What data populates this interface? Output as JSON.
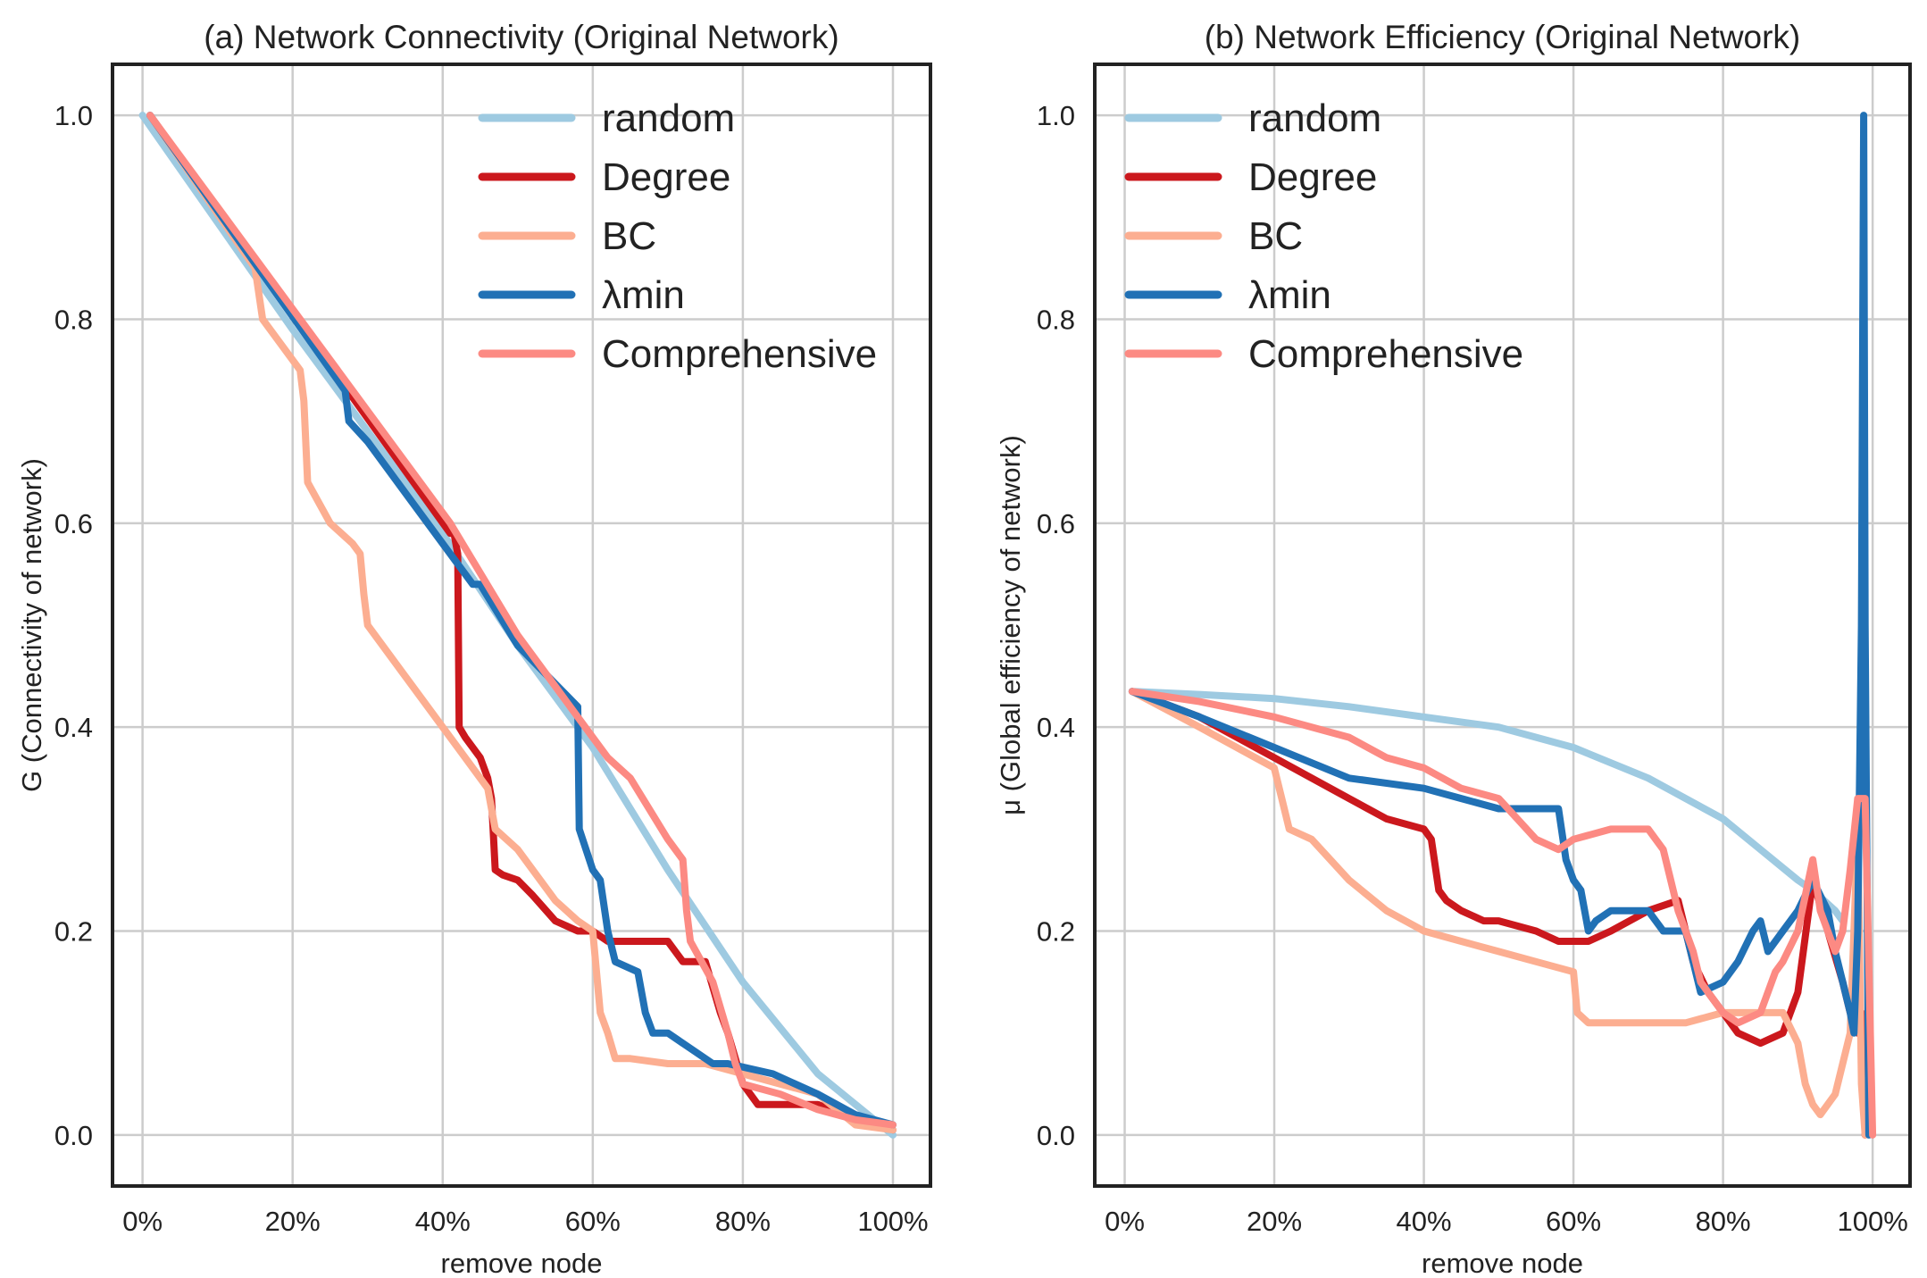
{
  "chart_data": [
    {
      "type": "line",
      "title": "(a) Network Connectivity (Original Network)",
      "xlabel": "remove node",
      "ylabel": "G (Connectivity of network)",
      "xlim": [
        -0.04,
        1.05
      ],
      "ylim": [
        -0.05,
        1.05
      ],
      "xticks": [
        0,
        0.2,
        0.4,
        0.6,
        0.8,
        1.0
      ],
      "xtick_labels": [
        "0%",
        "20%",
        "40%",
        "60%",
        "80%",
        "100%"
      ],
      "yticks": [
        0,
        0.2,
        0.4,
        0.6,
        0.8,
        1.0
      ],
      "ytick_labels": [
        "0.0",
        "0.2",
        "0.4",
        "0.6",
        "0.8",
        "1.0"
      ],
      "grid": true,
      "legend": "top-right",
      "series": [
        {
          "name": "random",
          "color": "#9ecae1",
          "x": [
            0,
            0.2,
            0.4,
            0.5,
            0.6,
            0.7,
            0.8,
            0.9,
            1.0
          ],
          "y": [
            1.0,
            0.79,
            0.59,
            0.48,
            0.38,
            0.26,
            0.15,
            0.06,
            0.0
          ]
        },
        {
          "name": "Degree",
          "color": "#cb181d",
          "x": [
            0.01,
            0.41,
            0.415,
            0.42,
            0.422,
            0.43,
            0.45,
            0.46,
            0.465,
            0.47,
            0.48,
            0.5,
            0.52,
            0.55,
            0.58,
            0.6,
            0.62,
            0.7,
            0.72,
            0.75,
            0.77,
            0.78,
            0.8,
            0.82,
            0.9,
            0.95,
            1.0
          ],
          "y": [
            1.0,
            0.59,
            0.59,
            0.57,
            0.4,
            0.39,
            0.37,
            0.35,
            0.33,
            0.26,
            0.255,
            0.25,
            0.235,
            0.21,
            0.2,
            0.2,
            0.19,
            0.19,
            0.17,
            0.17,
            0.12,
            0.1,
            0.05,
            0.03,
            0.03,
            0.015,
            0.005
          ]
        },
        {
          "name": "BC",
          "color": "#fcae91",
          "x": [
            0.01,
            0.15,
            0.16,
            0.2,
            0.21,
            0.215,
            0.22,
            0.25,
            0.28,
            0.29,
            0.295,
            0.3,
            0.35,
            0.4,
            0.46,
            0.47,
            0.5,
            0.55,
            0.58,
            0.6,
            0.61,
            0.62,
            0.63,
            0.65,
            0.7,
            0.75,
            0.8,
            0.9,
            0.95,
            1.0
          ],
          "y": [
            1.0,
            0.85,
            0.8,
            0.76,
            0.75,
            0.72,
            0.64,
            0.6,
            0.58,
            0.57,
            0.53,
            0.5,
            0.45,
            0.4,
            0.34,
            0.3,
            0.28,
            0.23,
            0.21,
            0.2,
            0.12,
            0.1,
            0.075,
            0.075,
            0.07,
            0.07,
            0.06,
            0.04,
            0.01,
            0.005
          ]
        },
        {
          "name": "λmin",
          "color": "#2171b5",
          "x": [
            0.01,
            0.27,
            0.275,
            0.3,
            0.35,
            0.4,
            0.44,
            0.45,
            0.5,
            0.58,
            0.582,
            0.6,
            0.61,
            0.62,
            0.63,
            0.66,
            0.67,
            0.68,
            0.7,
            0.76,
            0.78,
            0.84,
            0.87,
            0.9,
            0.95,
            1.0
          ],
          "y": [
            1.0,
            0.73,
            0.7,
            0.68,
            0.63,
            0.58,
            0.54,
            0.54,
            0.48,
            0.42,
            0.3,
            0.26,
            0.25,
            0.2,
            0.17,
            0.16,
            0.12,
            0.1,
            0.1,
            0.07,
            0.07,
            0.06,
            0.05,
            0.04,
            0.02,
            0.01
          ]
        },
        {
          "name": "Comprehensive",
          "color": "#fc8a83",
          "x": [
            0.01,
            0.41,
            0.5,
            0.6,
            0.62,
            0.65,
            0.7,
            0.72,
            0.725,
            0.73,
            0.76,
            0.78,
            0.79,
            0.8,
            0.85,
            0.9,
            0.95,
            1.0
          ],
          "y": [
            1.0,
            0.6,
            0.49,
            0.39,
            0.37,
            0.35,
            0.29,
            0.27,
            0.22,
            0.19,
            0.15,
            0.1,
            0.07,
            0.05,
            0.04,
            0.025,
            0.015,
            0.01
          ]
        }
      ]
    },
    {
      "type": "line",
      "title": "(b) Network Efficiency (Original Network)",
      "xlabel": "remove node",
      "ylabel": "μ (Global efficiency of network)",
      "xlim": [
        -0.04,
        1.05
      ],
      "ylim": [
        -0.05,
        1.05
      ],
      "xticks": [
        0,
        0.2,
        0.4,
        0.6,
        0.8,
        1.0
      ],
      "xtick_labels": [
        "0%",
        "20%",
        "40%",
        "60%",
        "80%",
        "100%"
      ],
      "yticks": [
        0,
        0.2,
        0.4,
        0.6,
        0.8,
        1.0
      ],
      "ytick_labels": [
        "0.0",
        "0.2",
        "0.4",
        "0.6",
        "0.8",
        "1.0"
      ],
      "grid": true,
      "legend": "top-left",
      "series": [
        {
          "name": "random",
          "color": "#9ecae1",
          "x": [
            0.01,
            0.1,
            0.2,
            0.3,
            0.4,
            0.5,
            0.55,
            0.6,
            0.7,
            0.8,
            0.85,
            0.9,
            0.92,
            0.95,
            0.96
          ],
          "y": [
            0.435,
            0.432,
            0.428,
            0.42,
            0.41,
            0.4,
            0.39,
            0.38,
            0.35,
            0.31,
            0.28,
            0.25,
            0.24,
            0.22,
            0.21
          ]
        },
        {
          "name": "Degree",
          "color": "#cb181d",
          "x": [
            0.01,
            0.1,
            0.2,
            0.25,
            0.3,
            0.35,
            0.4,
            0.41,
            0.42,
            0.43,
            0.45,
            0.48,
            0.5,
            0.55,
            0.58,
            0.6,
            0.62,
            0.65,
            0.7,
            0.74,
            0.75,
            0.76,
            0.78,
            0.8,
            0.82,
            0.85,
            0.88,
            0.9,
            0.92,
            0.94,
            0.96,
            0.97,
            0.98,
            0.985,
            0.99
          ],
          "y": [
            0.435,
            0.41,
            0.37,
            0.35,
            0.33,
            0.31,
            0.3,
            0.29,
            0.24,
            0.23,
            0.22,
            0.21,
            0.21,
            0.2,
            0.19,
            0.19,
            0.19,
            0.2,
            0.22,
            0.23,
            0.2,
            0.17,
            0.14,
            0.12,
            0.1,
            0.09,
            0.1,
            0.14,
            0.25,
            0.2,
            0.15,
            0.12,
            0.1,
            0.12,
            0.0
          ]
        },
        {
          "name": "BC",
          "color": "#fcae91",
          "x": [
            0.01,
            0.1,
            0.2,
            0.21,
            0.22,
            0.25,
            0.3,
            0.35,
            0.4,
            0.45,
            0.5,
            0.55,
            0.6,
            0.605,
            0.62,
            0.65,
            0.7,
            0.75,
            0.8,
            0.82,
            0.85,
            0.88,
            0.9,
            0.91,
            0.92,
            0.93,
            0.95,
            0.97,
            0.98,
            0.985,
            0.99
          ],
          "y": [
            0.435,
            0.4,
            0.36,
            0.33,
            0.3,
            0.29,
            0.25,
            0.22,
            0.2,
            0.19,
            0.18,
            0.17,
            0.16,
            0.12,
            0.11,
            0.11,
            0.11,
            0.11,
            0.12,
            0.12,
            0.12,
            0.12,
            0.09,
            0.05,
            0.03,
            0.02,
            0.04,
            0.1,
            0.3,
            0.05,
            0.0
          ]
        },
        {
          "name": "λmin",
          "color": "#2171b5",
          "x": [
            0.01,
            0.1,
            0.2,
            0.3,
            0.4,
            0.45,
            0.5,
            0.55,
            0.58,
            0.59,
            0.6,
            0.61,
            0.62,
            0.63,
            0.65,
            0.7,
            0.72,
            0.75,
            0.77,
            0.8,
            0.82,
            0.84,
            0.85,
            0.86,
            0.88,
            0.9,
            0.92,
            0.94,
            0.95,
            0.96,
            0.97,
            0.975,
            0.98,
            0.985,
            0.988,
            0.99,
            0.995
          ],
          "y": [
            0.435,
            0.41,
            0.38,
            0.35,
            0.34,
            0.33,
            0.32,
            0.32,
            0.32,
            0.27,
            0.25,
            0.24,
            0.2,
            0.21,
            0.22,
            0.22,
            0.2,
            0.2,
            0.14,
            0.15,
            0.17,
            0.2,
            0.21,
            0.18,
            0.2,
            0.22,
            0.25,
            0.22,
            0.18,
            0.15,
            0.12,
            0.1,
            0.2,
            0.5,
            1.0,
            0.5,
            0.0
          ]
        },
        {
          "name": "Comprehensive",
          "color": "#fc8a83",
          "x": [
            0.01,
            0.1,
            0.2,
            0.3,
            0.35,
            0.4,
            0.45,
            0.5,
            0.55,
            0.58,
            0.6,
            0.65,
            0.7,
            0.72,
            0.73,
            0.74,
            0.75,
            0.76,
            0.77,
            0.78,
            0.8,
            0.82,
            0.85,
            0.87,
            0.88,
            0.9,
            0.92,
            0.93,
            0.95,
            0.96,
            0.97,
            0.98,
            0.99,
            1.0
          ],
          "y": [
            0.435,
            0.425,
            0.41,
            0.39,
            0.37,
            0.36,
            0.34,
            0.33,
            0.29,
            0.28,
            0.29,
            0.3,
            0.3,
            0.28,
            0.25,
            0.22,
            0.2,
            0.18,
            0.15,
            0.14,
            0.12,
            0.11,
            0.12,
            0.16,
            0.17,
            0.2,
            0.27,
            0.22,
            0.18,
            0.2,
            0.26,
            0.33,
            0.33,
            0.0
          ]
        }
      ]
    }
  ]
}
